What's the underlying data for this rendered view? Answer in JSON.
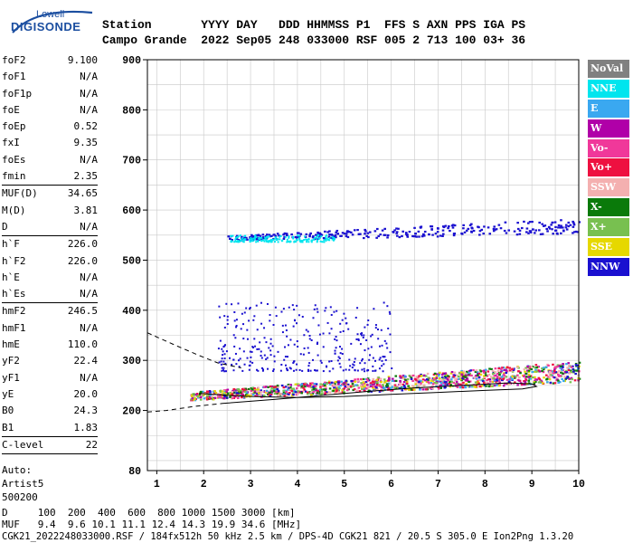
{
  "logo": {
    "line1": "Lowell",
    "line2": "DIGISONDE"
  },
  "header": {
    "row1": "Station       YYYY DAY   DDD HHMMSS P1  FFS S AXN PPS IGA PS",
    "row2": "Campo Grande  2022 Sep05 248 033000 RSF 005 2 713 100 03+ 36"
  },
  "parameters": [
    [
      {
        "name": "foF2",
        "value": "9.100"
      },
      {
        "name": "foF1",
        "value": "N/A"
      },
      {
        "name": "foF1p",
        "value": "N/A"
      },
      {
        "name": "foE",
        "value": "N/A"
      },
      {
        "name": "foEp",
        "value": "0.52"
      },
      {
        "name": "fxI",
        "value": "9.35"
      },
      {
        "name": "foEs",
        "value": "N/A"
      },
      {
        "name": "fmin",
        "value": "2.35"
      }
    ],
    [
      {
        "name": "MUF(D)",
        "value": "34.65"
      },
      {
        "name": "M(D)",
        "value": "3.81"
      },
      {
        "name": "D",
        "value": "N/A"
      }
    ],
    [
      {
        "name": "h`F",
        "value": "226.0"
      },
      {
        "name": "h`F2",
        "value": "226.0"
      },
      {
        "name": "h`E",
        "value": "N/A"
      },
      {
        "name": "h`Es",
        "value": "N/A"
      }
    ],
    [
      {
        "name": "hmF2",
        "value": "246.5"
      },
      {
        "name": "hmF1",
        "value": "N/A"
      },
      {
        "name": "hmE",
        "value": "110.0"
      },
      {
        "name": "yF2",
        "value": "22.4"
      },
      {
        "name": "yF1",
        "value": "N/A"
      },
      {
        "name": "yE",
        "value": "20.0"
      },
      {
        "name": "B0",
        "value": "24.3"
      },
      {
        "name": "B1",
        "value": "1.83"
      }
    ],
    [
      {
        "name": "C-level",
        "value": "22"
      }
    ]
  ],
  "auto": {
    "line1": "Auto:",
    "line2": "Artist5",
    "line3": "500200"
  },
  "legend": [
    {
      "label": "NoVal",
      "color": "#808080"
    },
    {
      "label": "NNE",
      "color": "#00e5ee"
    },
    {
      "label": "E",
      "color": "#3aa8f0"
    },
    {
      "label": "W",
      "color": "#b000a8"
    },
    {
      "label": "Vo-",
      "color": "#f0389a"
    },
    {
      "label": "Vo+",
      "color": "#ee1040"
    },
    {
      "label": "SSW",
      "color": "#f4b0b0"
    },
    {
      "label": "X-",
      "color": "#0a7a0a"
    },
    {
      "label": "X+",
      "color": "#78c050"
    },
    {
      "label": "SSE",
      "color": "#e6d800"
    },
    {
      "label": "NNW",
      "color": "#1a10d0"
    }
  ],
  "footer": {
    "d_row": "D     100  200  400  600  800 1000 1500 3000 [km]",
    "muf_row": "MUF   9.4  9.6 10.1 11.1 12.4 14.3 19.9 34.6 [MHz]",
    "info": "CGK21_2022248033000.RSF / 184fx512h 50 kHz 2.5 km / DPS-4D CGK21 821 / 20.5 S 305.0 E Ion2Png 1.3.20"
  },
  "chart_data": {
    "type": "scatter",
    "title": "",
    "xlabel": "",
    "ylabel": "",
    "xlim": [
      0.8,
      10
    ],
    "ylim": [
      80,
      900
    ],
    "x_ticks": [
      1,
      2,
      3,
      4,
      5,
      6,
      7,
      8,
      9,
      10
    ],
    "y_ticks": [
      200,
      300,
      400,
      500,
      600,
      700,
      800,
      900
    ],
    "y_tick_labels_top": "900",
    "grid": true,
    "echo_bands": [
      {
        "name": "F-layer trace",
        "x_range": [
          1.7,
          10
        ],
        "h_start": [
          222,
          238
        ],
        "h_end": [
          258,
          300
        ],
        "color_mix": [
          "#f0389a",
          "#ee1040",
          "#e6d800",
          "#78c050",
          "#3aa8f0",
          "#b000a8",
          "#1a10d0",
          "#0a7a0a",
          "#f4b0b0"
        ]
      },
      {
        "name": "spread",
        "x_range": [
          2.3,
          6
        ],
        "h_range": [
          280,
          420
        ],
        "color": "#1a10d0"
      },
      {
        "name": "second hop",
        "x_range": [
          2.5,
          10
        ],
        "h_start": [
          540,
          550
        ],
        "h_end": [
          555,
          585
        ],
        "color": "#1a10d0"
      },
      {
        "name": "second hop NNE",
        "x_range": [
          2.5,
          4.8
        ],
        "h_range": [
          538,
          552
        ],
        "color": "#00e5ee"
      }
    ],
    "profile_line": {
      "upper_dashed": [
        [
          0.8,
          355
        ],
        [
          1.4,
          330
        ],
        [
          1.9,
          310
        ],
        [
          2.3,
          295
        ],
        [
          2.8,
          285
        ]
      ],
      "lower_dashed": [
        [
          0.8,
          197
        ],
        [
          1.2,
          200
        ],
        [
          1.8,
          208
        ],
        [
          2.4,
          214
        ]
      ],
      "solid": [
        [
          2.4,
          214
        ],
        [
          3.5,
          222
        ],
        [
          4.5,
          230
        ],
        [
          5.5,
          238
        ],
        [
          6.5,
          245
        ],
        [
          7.5,
          250
        ],
        [
          8.5,
          255
        ],
        [
          9.0,
          253
        ],
        [
          9.1,
          248
        ],
        [
          8.8,
          243
        ],
        [
          8.0,
          240
        ],
        [
          7.0,
          236
        ],
        [
          6.0,
          232
        ],
        [
          5.0,
          228
        ],
        [
          4.0,
          226
        ],
        [
          3.0,
          228
        ],
        [
          2.2,
          232
        ],
        [
          1.9,
          234
        ]
      ]
    }
  }
}
